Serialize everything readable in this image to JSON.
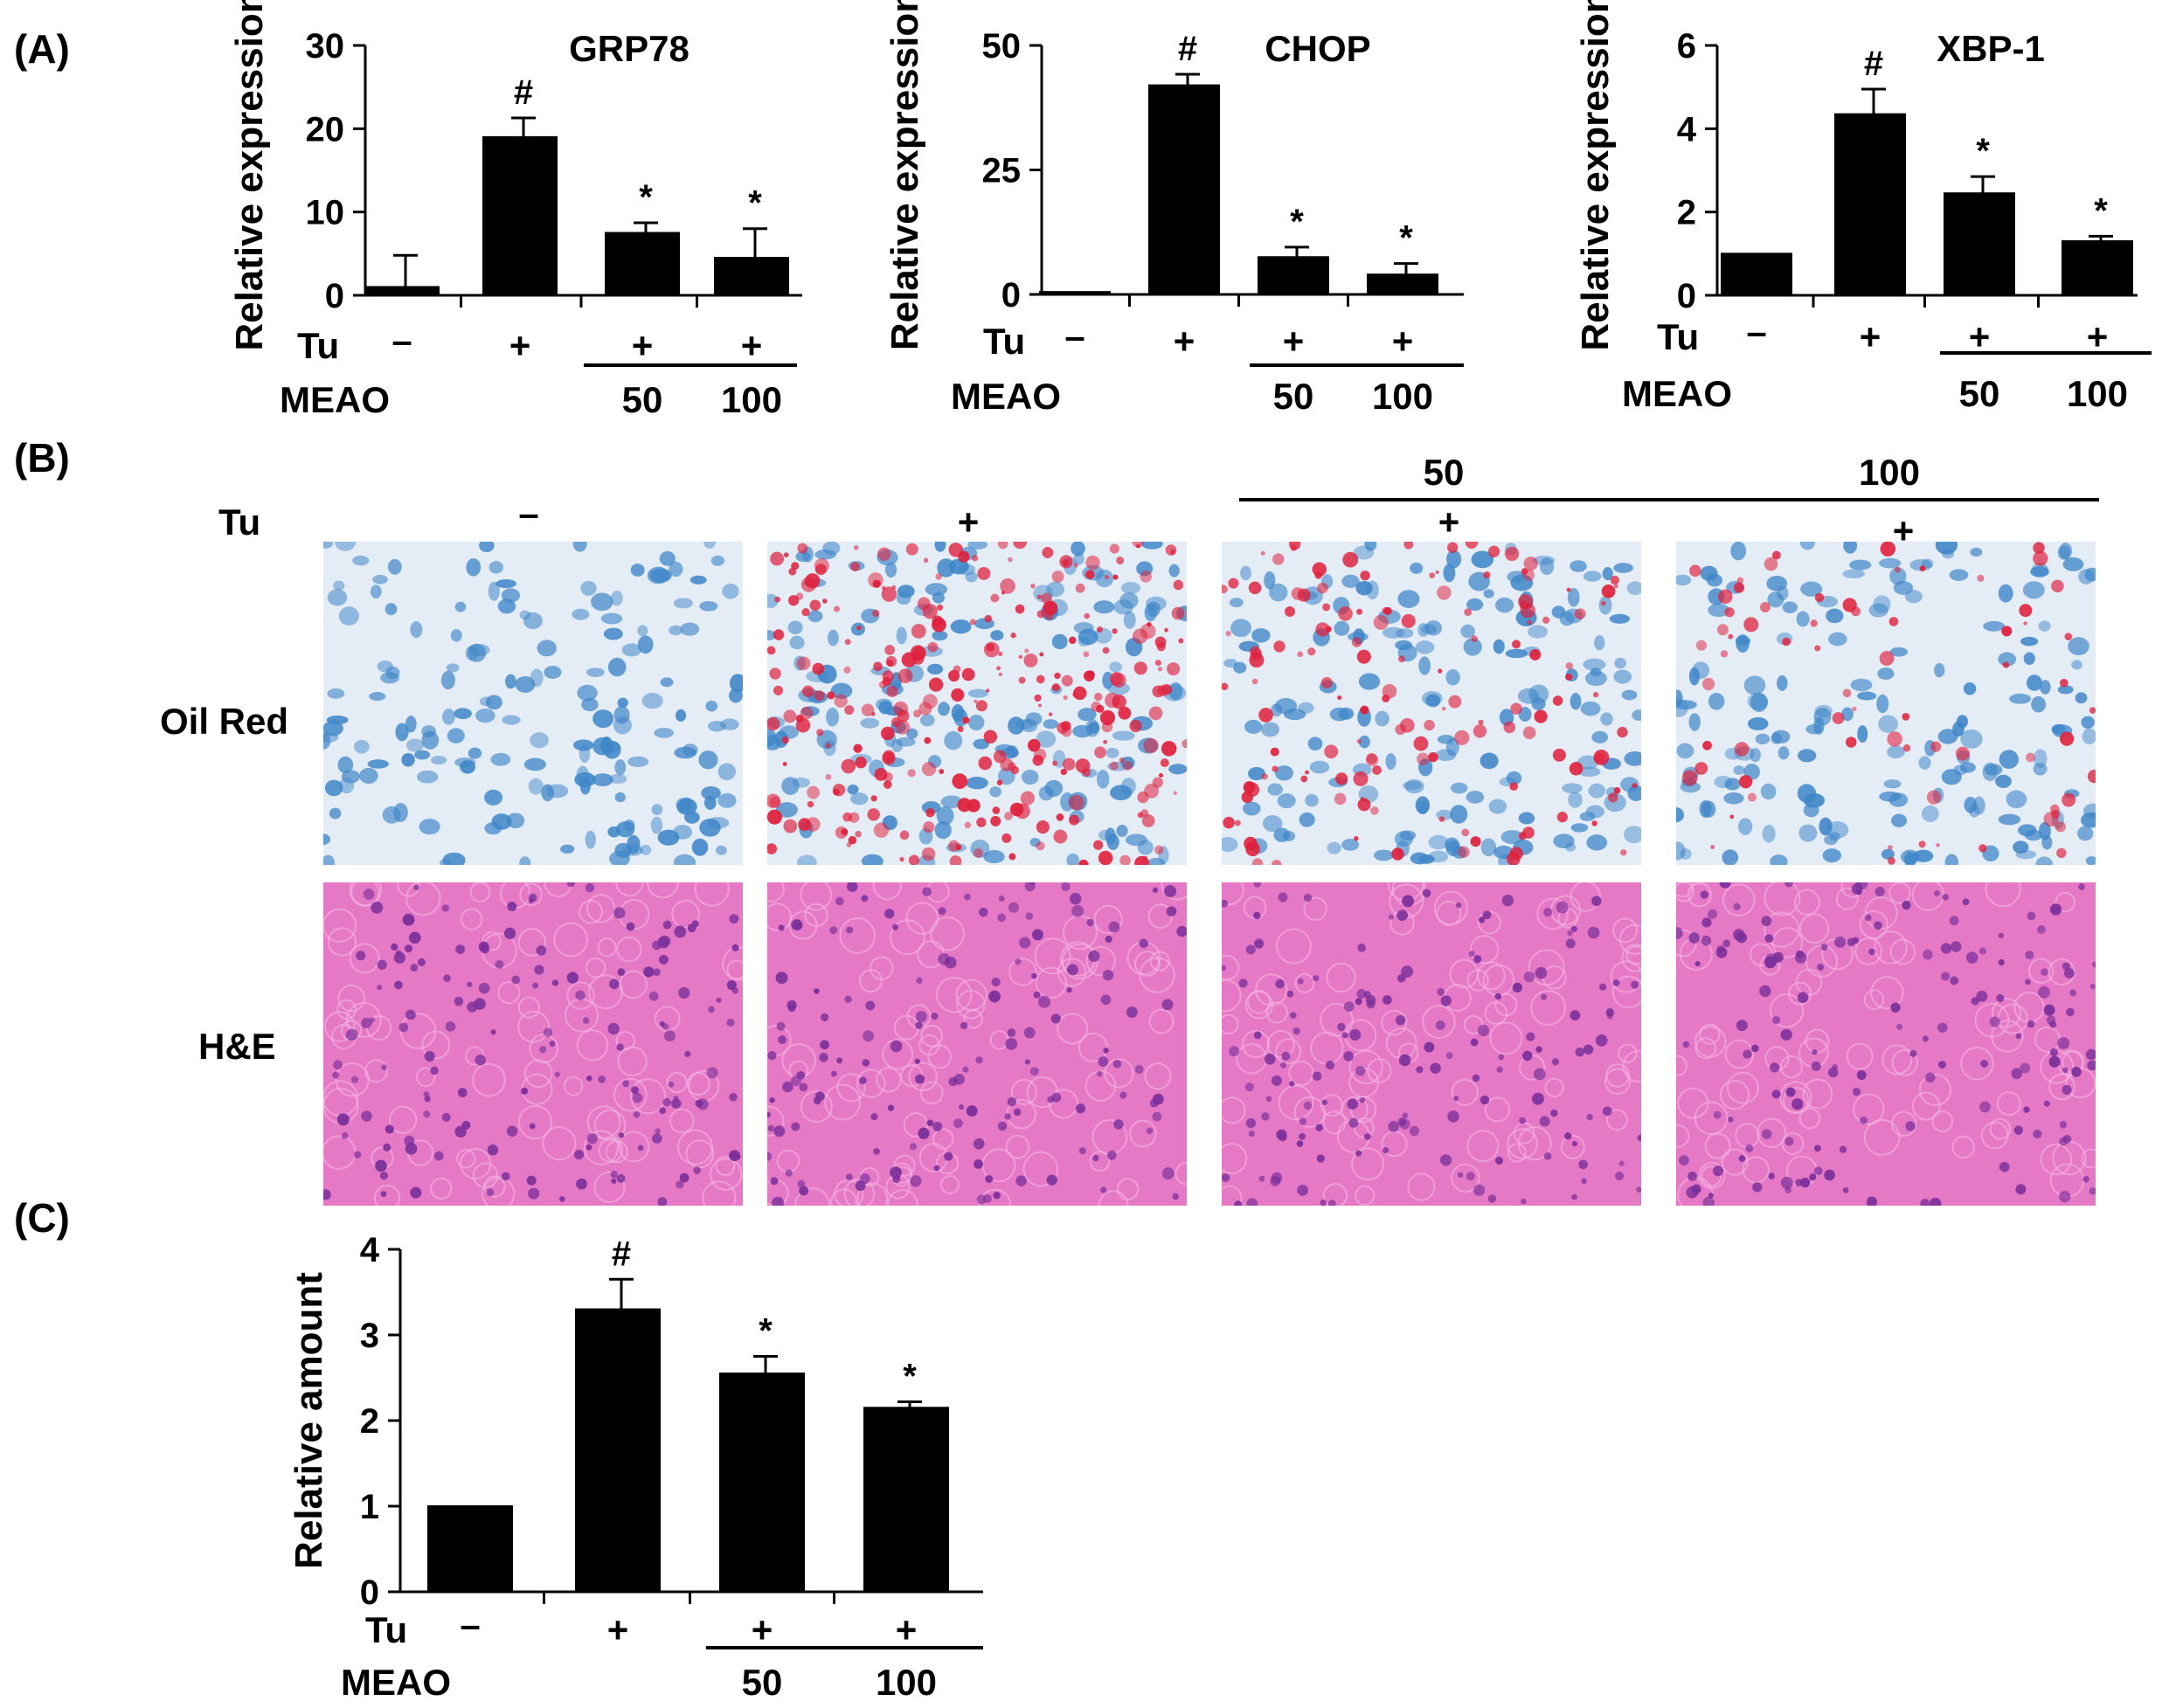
{
  "panel_labels": {
    "a": "(A)",
    "b": "(B)",
    "c": "(C)"
  },
  "conditions": {
    "tu_label": "Tu",
    "meao_label": "MEAO",
    "tu_values": [
      "–",
      "+",
      "+",
      "+"
    ],
    "meao_doses": [
      "50",
      "100"
    ]
  },
  "panel_b": {
    "dose_labels": [
      "50",
      "100"
    ],
    "row_labels": [
      "Oil Red",
      "H&E"
    ],
    "oil_red_colors": {
      "background": "#e4ecf6",
      "nucleus": "#3f86c8",
      "lipid": "#e0203c"
    },
    "he_colors": {
      "background": "#e679c6",
      "nucleus": "#7a2f9a"
    },
    "oil_red_lipid_level": [
      0.0,
      0.85,
      0.4,
      0.2
    ]
  },
  "chart_data": [
    {
      "type": "bar",
      "panel": "A",
      "title": "GRP78",
      "ylabel": "Relative expression",
      "xlabel": "",
      "ylim": [
        0,
        30
      ],
      "yticks": [
        0,
        10,
        20,
        30
      ],
      "categories": [
        "Tu –",
        "Tu +",
        "Tu + MEAO 50",
        "Tu + MEAO 100"
      ],
      "values": [
        1,
        19,
        7.5,
        4.5
      ],
      "errors": [
        3.8,
        2.3,
        1.2,
        3.5
      ],
      "markers": [
        "",
        "#",
        "*",
        "*"
      ],
      "color": "#000000"
    },
    {
      "type": "bar",
      "panel": "A",
      "title": "CHOP",
      "ylabel": "Relative expression",
      "xlabel": "",
      "ylim": [
        0,
        50
      ],
      "yticks": [
        0,
        25,
        50
      ],
      "categories": [
        "Tu –",
        "Tu +",
        "Tu + MEAO 50",
        "Tu + MEAO 100"
      ],
      "values": [
        0.5,
        42,
        7.5,
        4
      ],
      "errors": [
        0,
        2.2,
        2,
        2.2
      ],
      "markers": [
        "",
        "#",
        "*",
        "*"
      ],
      "color": "#000000"
    },
    {
      "type": "bar",
      "panel": "A",
      "title": "XBP-1",
      "ylabel": "Relative expression",
      "xlabel": "",
      "ylim": [
        0,
        6
      ],
      "yticks": [
        0,
        2,
        4,
        6
      ],
      "categories": [
        "Tu –",
        "Tu +",
        "Tu + MEAO 50",
        "Tu + MEAO 100"
      ],
      "values": [
        1,
        4.35,
        2.45,
        1.3
      ],
      "errors": [
        0,
        0.6,
        0.4,
        0.12
      ],
      "markers": [
        "",
        "#",
        "*",
        "*"
      ],
      "color": "#000000"
    },
    {
      "type": "bar",
      "panel": "C",
      "title": "",
      "ylabel": "Relative amount",
      "xlabel": "",
      "ylim": [
        0,
        4
      ],
      "yticks": [
        0,
        1,
        2,
        3,
        4
      ],
      "categories": [
        "Tu –",
        "Tu +",
        "Tu + MEAO 50",
        "Tu + MEAO 100"
      ],
      "values": [
        1,
        3.3,
        2.55,
        2.15
      ],
      "errors": [
        0,
        0.35,
        0.2,
        0.07
      ],
      "markers": [
        "",
        "#",
        "*",
        "*"
      ],
      "color": "#000000"
    }
  ]
}
